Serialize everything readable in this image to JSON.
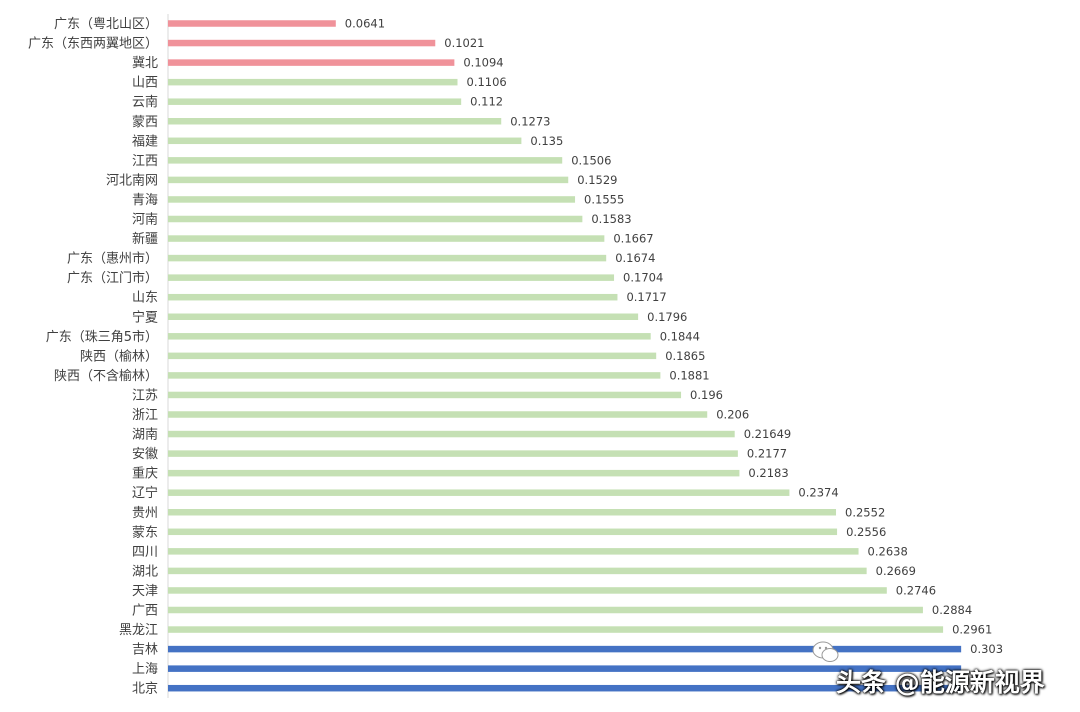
{
  "chart_data": {
    "type": "bar",
    "orientation": "horizontal",
    "categories": [
      "广东（粤北山区）",
      "广东（东西两翼地区）",
      "冀北",
      "山西",
      "云南",
      "蒙西",
      "福建",
      "江西",
      "河北南网",
      "青海",
      "河南",
      "新疆",
      "广东（惠州市）",
      "广东（江门市）",
      "山东",
      "宁夏",
      "广东（珠三角5市）",
      "陕西（榆林）",
      "陕西（不含榆林）",
      "江苏",
      "浙江",
      "湖南",
      "安徽",
      "重庆",
      "辽宁",
      "贵州",
      "蒙东",
      "四川",
      "湖北",
      "天津",
      "广西",
      "黑龙江",
      "吉林",
      "上海",
      "北京"
    ],
    "values": [
      0.0641,
      0.1021,
      0.1094,
      0.1106,
      0.112,
      0.1273,
      0.135,
      0.1506,
      0.1529,
      0.1555,
      0.1583,
      0.1667,
      0.1674,
      0.1704,
      0.1717,
      0.1796,
      0.1844,
      0.1865,
      0.1881,
      0.196,
      0.206,
      0.21649,
      0.2177,
      0.2183,
      0.2374,
      0.2552,
      0.2556,
      0.2638,
      0.2669,
      0.2746,
      0.2884,
      0.2961,
      0.303,
      0.303,
      0.303
    ],
    "value_labels": [
      "0.0641",
      "0.1021",
      "0.1094",
      "0.1106",
      "0.112",
      "0.1273",
      "0.135",
      "0.1506",
      "0.1529",
      "0.1555",
      "0.1583",
      "0.1667",
      "0.1674",
      "0.1704",
      "0.1717",
      "0.1796",
      "0.1844",
      "0.1865",
      "0.1881",
      "0.196",
      "0.206",
      "0.21649",
      "0.2177",
      "0.2183",
      "0.2374",
      "0.2552",
      "0.2556",
      "0.2638",
      "0.2669",
      "0.2746",
      "0.2884",
      "0.2961",
      "0.303",
      "",
      ""
    ],
    "colors": [
      "#f0929a",
      "#f0929a",
      "#f0929a",
      "#c5e0b4",
      "#c5e0b4",
      "#c5e0b4",
      "#c5e0b4",
      "#c5e0b4",
      "#c5e0b4",
      "#c5e0b4",
      "#c5e0b4",
      "#c5e0b4",
      "#c5e0b4",
      "#c5e0b4",
      "#c5e0b4",
      "#c5e0b4",
      "#c5e0b4",
      "#c5e0b4",
      "#c5e0b4",
      "#c5e0b4",
      "#c5e0b4",
      "#c5e0b4",
      "#c5e0b4",
      "#c5e0b4",
      "#c5e0b4",
      "#c5e0b4",
      "#c5e0b4",
      "#c5e0b4",
      "#c5e0b4",
      "#c5e0b4",
      "#c5e0b4",
      "#c5e0b4",
      "#4472c4",
      "#4472c4",
      "#4472c4"
    ],
    "xlim": [
      0,
      0.34
    ],
    "grid": false,
    "legend": "none"
  },
  "watermark": {
    "text": "头条 @能源新视界",
    "icon": "wechat-icon"
  }
}
